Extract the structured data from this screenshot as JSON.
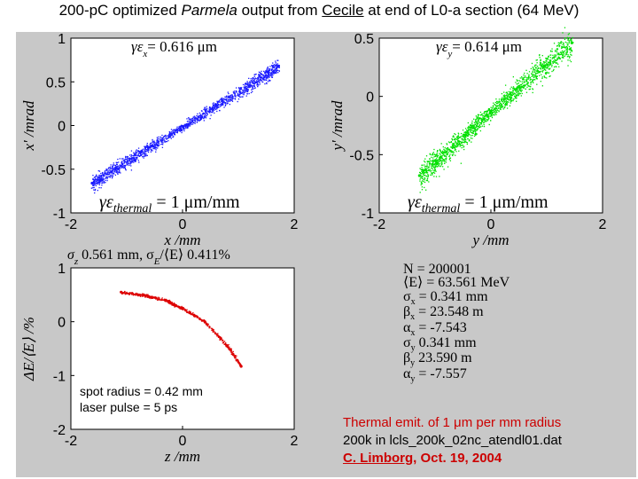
{
  "title": {
    "pre": "200-pC optimized ",
    "code": "Parmela",
    "mid": " output from ",
    "source": "Cecile",
    "post": " at end of L0-a section (64 MeV)"
  },
  "colors": {
    "x_points": "#1a1aff",
    "y_points": "#00e000",
    "z_points": "#dd0000",
    "note_red": "#cc0000",
    "panel_bg": "#c8c8c8"
  },
  "plots": {
    "x": {
      "emit_label": "γε",
      "emit_sub": "x",
      "emit_value": "= 0.616 μm",
      "thermal_label": "γε",
      "thermal_sub": "thermal",
      "thermal_value": " = 1 μm/mm",
      "xlabel": "x /mm",
      "ylabel": "x' /mrad"
    },
    "y": {
      "emit_label": "γε",
      "emit_sub": "y",
      "emit_value": "= 0.614 μm",
      "thermal_label": "γε",
      "thermal_sub": "thermal",
      "thermal_value": " = 1 μm/mm",
      "xlabel": "y /mm",
      "ylabel": "y' /mrad"
    },
    "z": {
      "header_sigma": "σ",
      "header_sigma_sub": "z",
      "header_text": " 0.561 mm, σ",
      "header_e_sub": "E",
      "header_tail": "/⟨E⟩ 0.411%",
      "xlabel": "z /mm",
      "ylabel": "ΔE/⟨E⟩ /%",
      "spot_radius": "spot radius = 0.42 mm",
      "laser_pulse": "laser pulse = 5 ps"
    }
  },
  "stats": [
    {
      "label": "N",
      "sub": "",
      "value": "= 200001"
    },
    {
      "label": "⟨E⟩",
      "sub": "",
      "value": "= 63.561 MeV"
    },
    {
      "label": "σ",
      "sub": "x",
      "value": "= 0.341 mm"
    },
    {
      "label": "β",
      "sub": "x",
      "value": "= 23.548 m"
    },
    {
      "label": "α",
      "sub": "x",
      "value": "= -7.543"
    },
    {
      "label": "σ",
      "sub": "y",
      "value": " 0.341 mm"
    },
    {
      "label": "β",
      "sub": "y",
      "value": " 23.590 m"
    },
    {
      "label": "α",
      "sub": "y",
      "value": "= -7.557"
    }
  ],
  "note": {
    "line1_pre": "Thermal emit. of 1 ",
    "line1_unit": "μm per mm radius",
    "line2": "200k in lcls_200k_02nc_atendl01.dat",
    "author": "C. Limborg",
    "date": ", Oct. 19, 2004"
  },
  "chart_data": [
    {
      "type": "scatter",
      "title": "γε_x = 0.616 μm",
      "xlabel": "x /mm",
      "ylabel": "x' /mrad",
      "xlim": [
        -2,
        2
      ],
      "ylim": [
        -1,
        1
      ],
      "xticks": [
        -2,
        0,
        2
      ],
      "yticks": [
        -1,
        -0.5,
        0,
        0.5,
        1
      ],
      "series": [
        {
          "name": "x phase space",
          "points": [
            [
              -1.62,
              -0.66
            ],
            [
              -1.2,
              -0.49
            ],
            [
              -0.6,
              -0.25
            ],
            [
              0,
              -0.01
            ],
            [
              0.6,
              0.23
            ],
            [
              1.2,
              0.46
            ],
            [
              1.72,
              0.68
            ]
          ]
        }
      ]
    },
    {
      "type": "scatter",
      "title": "γε_y = 0.614 μm",
      "xlabel": "y /mm",
      "ylabel": "y' /mrad",
      "xlim": [
        -2,
        2
      ],
      "ylim": [
        -1,
        0.5
      ],
      "xticks": [
        -2,
        0,
        2
      ],
      "yticks": [
        -1,
        -0.5,
        0,
        0.5
      ],
      "series": [
        {
          "name": "y phase space",
          "points": [
            [
              -1.28,
              -0.68
            ],
            [
              -0.9,
              -0.52
            ],
            [
              -0.45,
              -0.33
            ],
            [
              0,
              -0.13
            ],
            [
              0.45,
              0.06
            ],
            [
              0.95,
              0.26
            ],
            [
              1.45,
              0.46
            ]
          ]
        }
      ]
    },
    {
      "type": "scatter",
      "title": "σ_z 0.561 mm, σ_E/⟨E⟩ 0.411%",
      "xlabel": "z /mm",
      "ylabel": "ΔE/⟨E⟩ /%",
      "xlim": [
        -2,
        2
      ],
      "ylim": [
        -2,
        1
      ],
      "xticks": [
        -2,
        0,
        2
      ],
      "yticks": [
        -2,
        -1,
        0,
        1
      ],
      "series": [
        {
          "name": "longitudinal phase space",
          "points": [
            [
              -1.1,
              0.55
            ],
            [
              -0.7,
              0.5
            ],
            [
              -0.3,
              0.4
            ],
            [
              0,
              0.25
            ],
            [
              0.4,
              0.0
            ],
            [
              0.8,
              -0.45
            ],
            [
              1.05,
              -0.83
            ]
          ]
        }
      ]
    }
  ]
}
